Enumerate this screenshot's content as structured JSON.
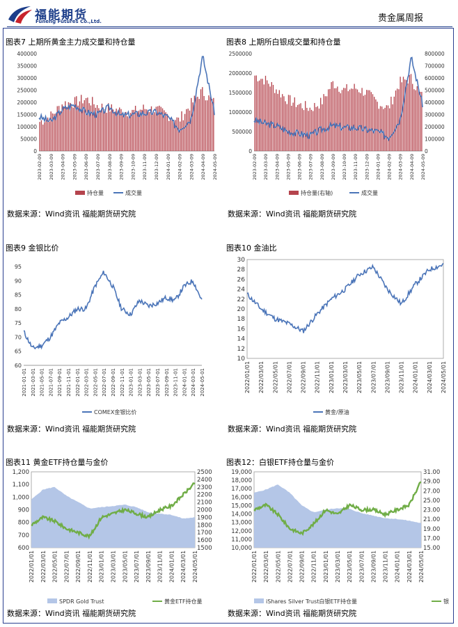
{
  "header": {
    "logo_cn": "福能期货",
    "logo_en": "Funeng Futures Co.,Ltd.",
    "report_title": "贵金属周报"
  },
  "panels": [
    {
      "title": "图表7 上期所黄金主力成交量和持仓量",
      "source": "数据来源：Wind资讯 福能期货研究院"
    },
    {
      "title": "图表8 上期所白银成交量和持仓量",
      "source": "数据来源：Wind资讯 福能期货研究院"
    },
    {
      "title": "图表9 金银比价",
      "source": "数据来源：Wind资讯 福能期货研究院"
    },
    {
      "title": "图表10 金油比",
      "source": "数据来源：Wind资讯 福能期货研究院"
    },
    {
      "title": "图表11 黄金ETF持仓量与金价",
      "source": "数据来源：Wind资讯 福能期货研究院"
    },
    {
      "title": "图表12：白银ETF持仓量与金价",
      "source": "数据来源：Wind资讯 福能期货研究院"
    }
  ],
  "chart_data": [
    {
      "type": "bar",
      "combo": "bar+line",
      "categories": [
        "2023-02-09",
        "2023-03-09",
        "2023-04-09",
        "2023-05-09",
        "2023-06-09",
        "2023-07-09",
        "2023-08-09",
        "2023-09-09",
        "2023-10-09",
        "2023-11-09",
        "2023-12-09",
        "2024-01-09",
        "2024-02-09",
        "2024-03-09",
        "2024-04-09",
        "2024-05-09"
      ],
      "yticks": [
        "400000",
        "350000",
        "300000",
        "250000",
        "200000",
        "150000",
        "100000",
        "50000",
        "0"
      ],
      "ylim": [
        0,
        400000
      ],
      "series": [
        {
          "name": "持仓量",
          "kind": "bar",
          "color": "#b5444d",
          "values": [
            120000,
            145000,
            195000,
            200000,
            215000,
            185000,
            175000,
            165000,
            160000,
            175000,
            170000,
            150000,
            125000,
            190000,
            245000,
            200000
          ]
        },
        {
          "name": "成交量",
          "kind": "line",
          "color": "#4a74b8",
          "values": [
            140000,
            120000,
            170000,
            190000,
            160000,
            150000,
            180000,
            145000,
            150000,
            155000,
            160000,
            140000,
            90000,
            130000,
            390000,
            160000
          ]
        }
      ]
    },
    {
      "type": "bar",
      "combo": "bar+line",
      "categories": [
        "2023-02-09",
        "2023-03-09",
        "2023-04-09",
        "2023-05-09",
        "2023-06-09",
        "2023-07-09",
        "2023-08-09",
        "2023-09-09",
        "2023-10-09",
        "2023-11-09",
        "2023-12-09",
        "2024-01-09",
        "2024-02-09",
        "2024-03-09",
        "2024-04-09",
        "2024-05-09"
      ],
      "yticks_left": [
        "2500000",
        "2000000",
        "1500000",
        "1000000",
        "500000",
        "0"
      ],
      "yticks_right": [
        "800000",
        "700000",
        "600000",
        "500000",
        "400000",
        "300000",
        "200000",
        "100000",
        "0"
      ],
      "ylim_left": [
        0,
        2500000
      ],
      "ylim_right": [
        0,
        800000
      ],
      "series": [
        {
          "name": "持仓量(右轴)",
          "kind": "bar",
          "axis": "right",
          "color": "#b5444d",
          "values": [
            620000,
            580000,
            500000,
            420000,
            380000,
            350000,
            400000,
            560000,
            500000,
            520000,
            480000,
            400000,
            350000,
            560000,
            600000,
            450000
          ]
        },
        {
          "name": "成交量",
          "kind": "line",
          "axis": "left",
          "color": "#4a74b8",
          "values": [
            800000,
            700000,
            650000,
            500000,
            450000,
            400000,
            550000,
            650000,
            600000,
            600000,
            550000,
            500000,
            350000,
            800000,
            2400000,
            1200000
          ]
        }
      ]
    },
    {
      "type": "line",
      "categories": [
        "2021-01-01",
        "2021-03-01",
        "2021-05-01",
        "2021-07-01",
        "2021-09-01",
        "2021-11-01",
        "2022-01-01",
        "2022-03-01",
        "2022-05-01",
        "2022-07-01",
        "2022-09-01",
        "2022-11-01",
        "2023-01-01",
        "2023-03-01",
        "2023-05-01",
        "2023-07-01",
        "2023-09-01",
        "2023-11-01",
        "2024-01-01",
        "2024-03-01",
        "2024-05-01"
      ],
      "yticks": [
        "95",
        "90",
        "85",
        "80",
        "75",
        "70",
        "65",
        "60"
      ],
      "ylim": [
        60,
        95
      ],
      "series": [
        {
          "name": "COMEX金银比价",
          "color": "#4a74b8",
          "values": [
            72,
            66,
            67,
            70,
            75,
            77,
            80,
            80,
            88,
            93,
            88,
            80,
            78,
            83,
            81,
            82,
            84,
            83,
            88,
            90,
            83
          ]
        }
      ]
    },
    {
      "type": "line",
      "categories": [
        "2022/01/01",
        "2022/03/01",
        "2022/05/01",
        "2022/07/01",
        "2022/09/01",
        "2022/11/01",
        "2023/01/01",
        "2023/03/01",
        "2023/05/01",
        "2023/07/01",
        "2023/09/01",
        "2023/11/01",
        "2024/01/01",
        "2024/03/01",
        "2024/05/01"
      ],
      "yticks": [
        "30",
        "28",
        "26",
        "24",
        "22",
        "20",
        "18",
        "16",
        "14",
        "12",
        "10"
      ],
      "ylim": [
        10,
        30
      ],
      "series": [
        {
          "name": "黄金/原油",
          "color": "#4a74b8",
          "values": [
            23,
            20,
            18,
            17,
            15.5,
            19,
            22,
            24,
            27,
            28.5,
            24,
            21,
            25,
            28,
            29
          ]
        }
      ]
    },
    {
      "type": "area",
      "combo": "area+line",
      "categories": [
        "2022/01/01",
        "2022/03/01",
        "2022/05/01",
        "2022/07/01",
        "2022/09/01",
        "2022/11/01",
        "2023/01/01",
        "2023/03/01",
        "2023/05/01",
        "2023/07/01",
        "2023/09/01",
        "2023/11/01",
        "2024/01/01",
        "2024/03/01",
        "2024/05/01"
      ],
      "yticks_left": [
        "1,200",
        "1,100",
        "1,000",
        "900",
        "800",
        "700",
        "600"
      ],
      "yticks_right": [
        "2500",
        "2400",
        "2300",
        "2200",
        "2100",
        "2000",
        "1900",
        "1800",
        "1700",
        "1600",
        "1500"
      ],
      "ylim_left": [
        600,
        1200
      ],
      "ylim_right": [
        1500,
        2500
      ],
      "series": [
        {
          "name": "SPDR Gold Trust",
          "kind": "area",
          "axis": "left",
          "color": "#b4c6e7",
          "values": [
            980,
            1060,
            1080,
            1010,
            960,
            910,
            920,
            930,
            940,
            920,
            880,
            870,
            860,
            830,
            840
          ]
        },
        {
          "name": "黄金ETF持仓量",
          "kind": "line",
          "axis": "right",
          "color": "#70ad47",
          "values": [
            1800,
            1900,
            1850,
            1750,
            1700,
            1650,
            1900,
            1950,
            2000,
            1950,
            1900,
            2000,
            2050,
            2200,
            2350
          ]
        }
      ]
    },
    {
      "type": "area",
      "combo": "area+line",
      "categories": [
        "2022/01/01",
        "2022/03/01",
        "2022/05/01",
        "2022/07/01",
        "2022/09/01",
        "2022/11/01",
        "2023/01/01",
        "2023/03/01",
        "2023/05/01",
        "2023/07/01",
        "2023/09/01",
        "2023/11/01",
        "2024/01/01",
        "2024/03/01",
        "2024/05/01"
      ],
      "yticks_left": [
        "19,000",
        "18,000",
        "17,000",
        "16,000",
        "15,000",
        "14,000",
        "13,000",
        "12,000",
        "11,000",
        "10,000"
      ],
      "yticks_right": [
        "31.00",
        "29.00",
        "27.00",
        "25.00",
        "23.00",
        "21.00",
        "19.00",
        "17.00",
        "15.00"
      ],
      "ylim_left": [
        10000,
        19000
      ],
      "ylim_right": [
        15,
        31
      ],
      "series": [
        {
          "name": "iShares Silver Trust白银ETF持仓量",
          "kind": "area",
          "axis": "left",
          "color": "#b4c6e7",
          "values": [
            16500,
            16900,
            17500,
            16500,
            15000,
            14200,
            14500,
            14700,
            14600,
            14100,
            13800,
            13500,
            13400,
            13200,
            12900
          ]
        },
        {
          "name": "银价",
          "kind": "line",
          "axis": "right",
          "color": "#70ad47",
          "values": [
            23,
            24,
            22,
            19,
            18,
            20,
            23,
            22,
            24,
            23,
            23,
            22,
            23,
            24,
            29
          ]
        }
      ]
    }
  ]
}
